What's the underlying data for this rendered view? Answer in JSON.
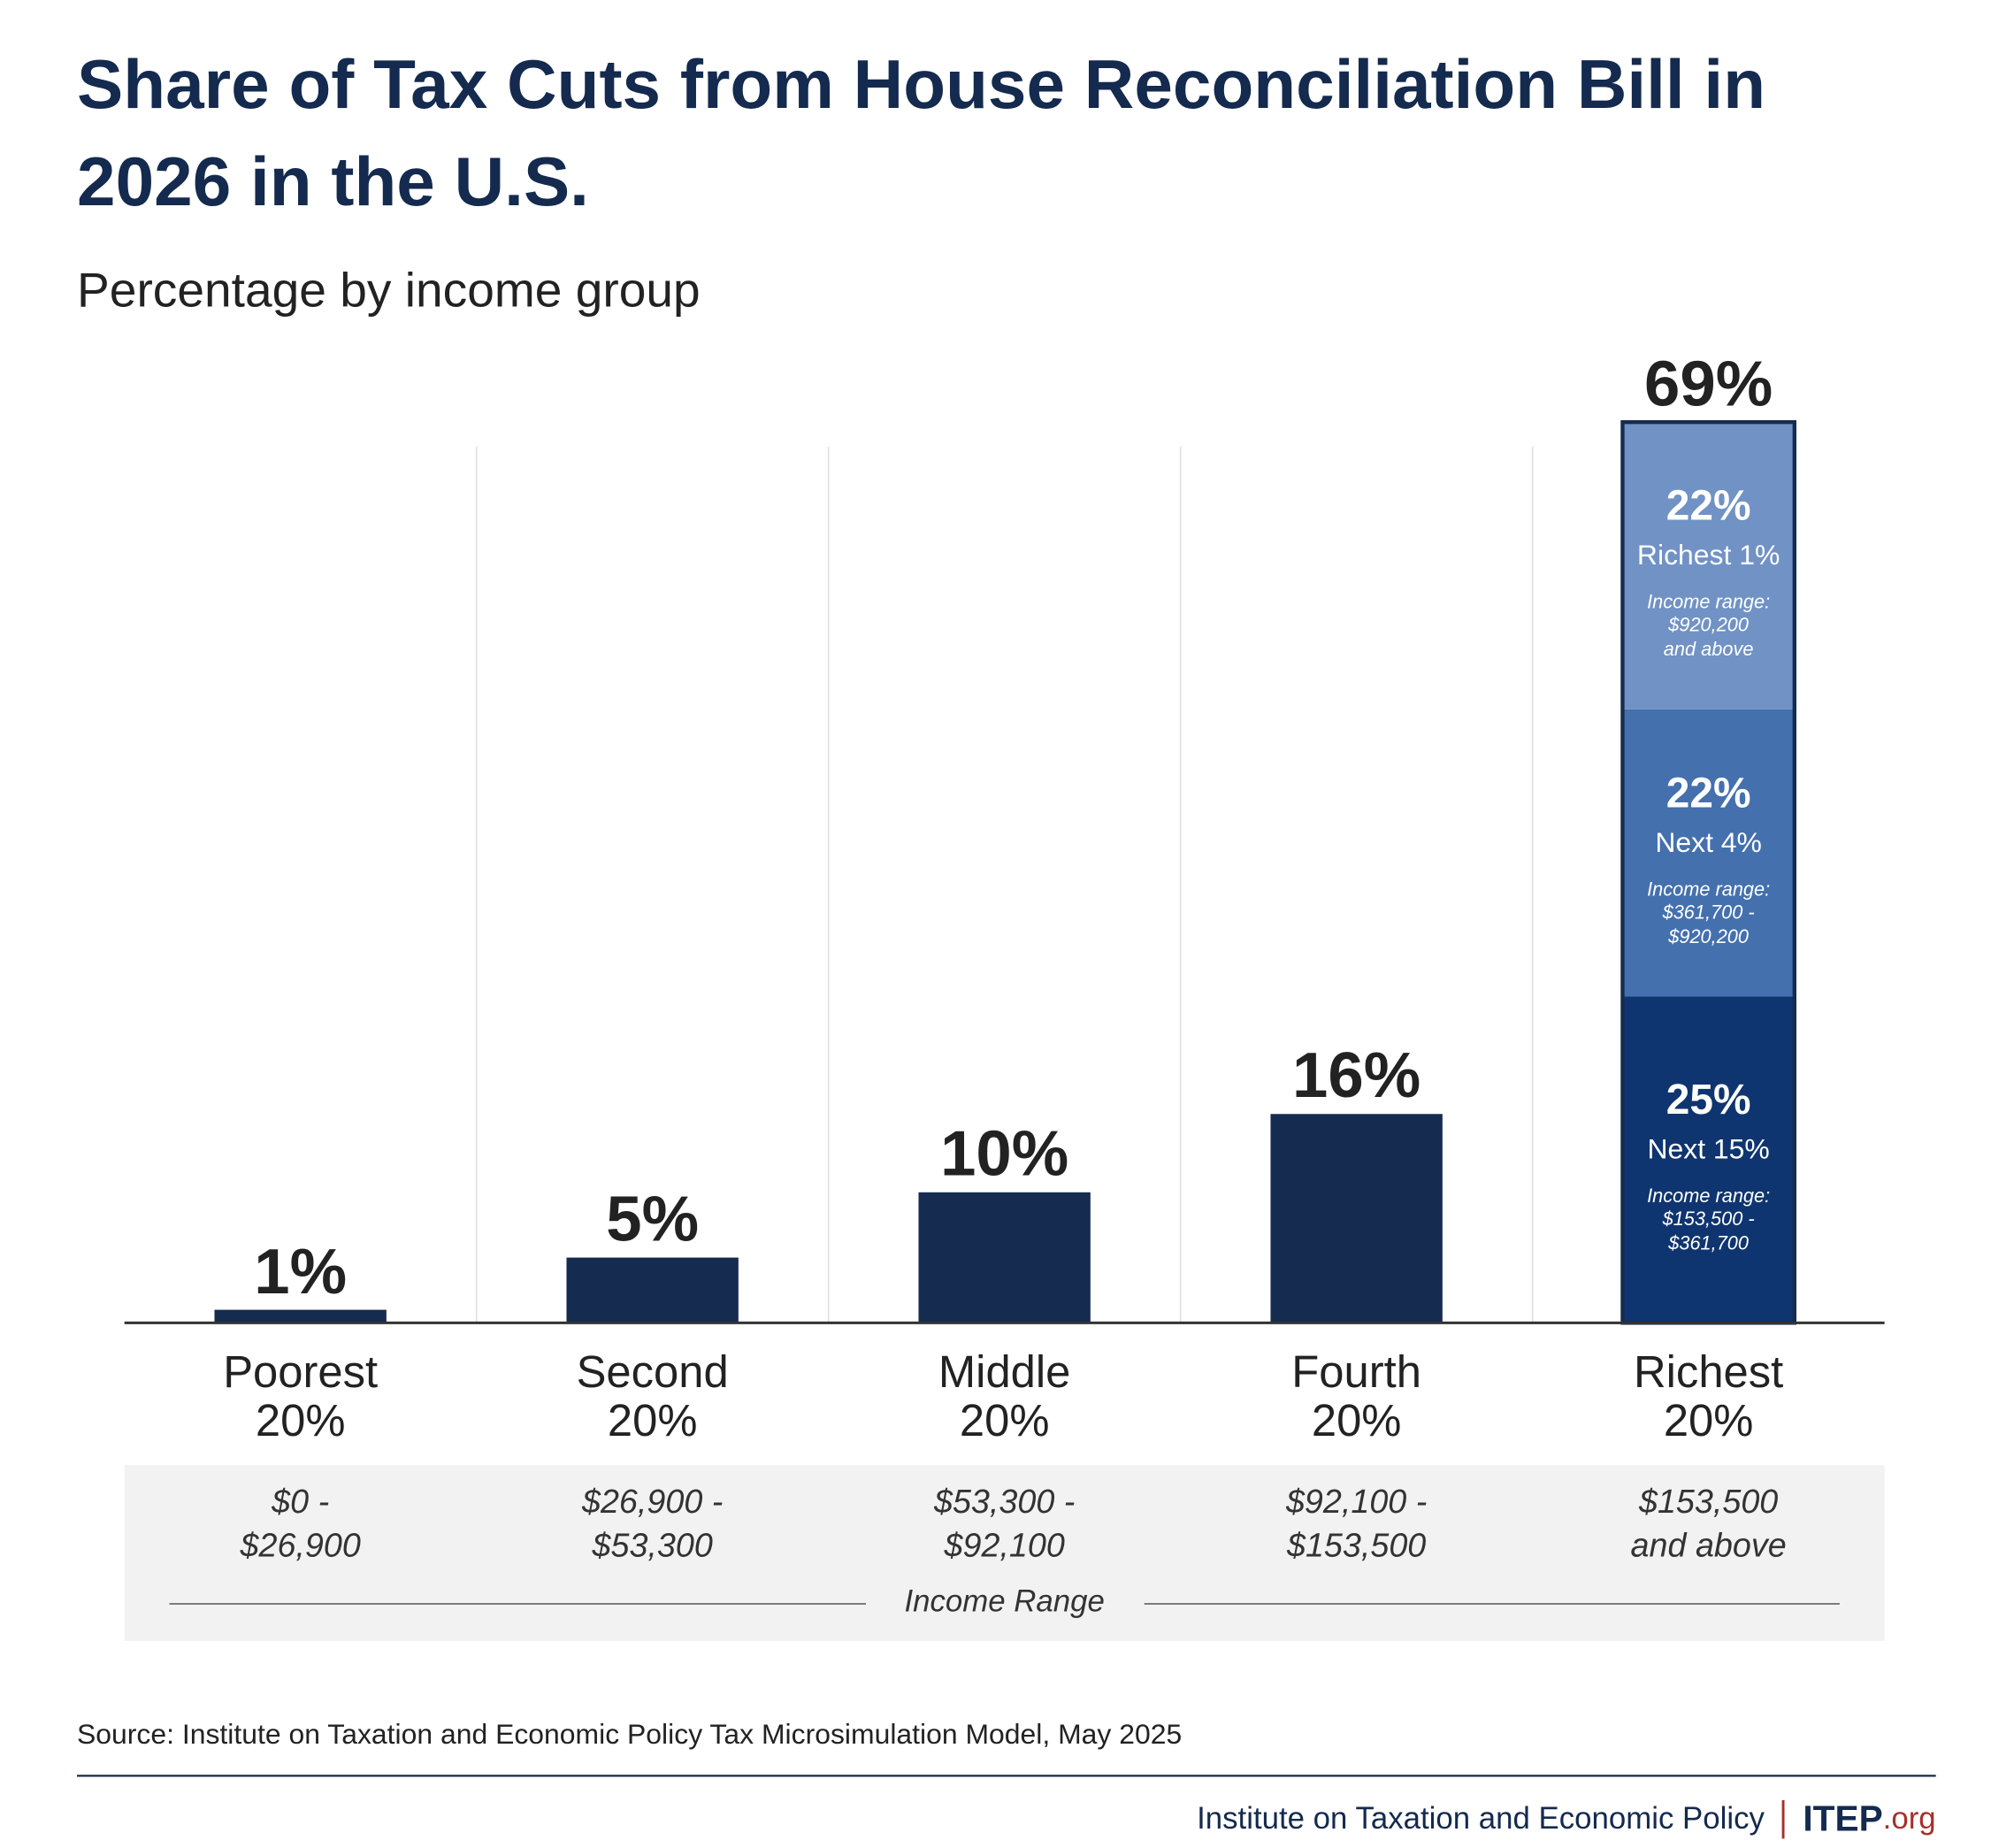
{
  "chart_data": {
    "type": "bar",
    "title": "Share of Tax Cuts from House Reconciliation Bill in 2026 in the U.S.",
    "subtitle": "Percentage by income group",
    "categories": [
      "Poorest\n20%",
      "Second\n20%",
      "Middle\n20%",
      "Fourth\n20%",
      "Richest\n20%"
    ],
    "values": [
      1,
      5,
      10,
      16,
      69
    ],
    "value_labels": [
      "1%",
      "5%",
      "10%",
      "16%",
      "69%"
    ],
    "color": "#152b50",
    "income_ranges": [
      "$0 -\n$26,900",
      "$26,900 -\n$53,300",
      "$53,300 -\n$92,100",
      "$92,100 -\n$153,500",
      "$153,500\nand above"
    ],
    "income_range_label": "Income Range",
    "segments": {
      "category_index": 4,
      "series": [
        {
          "name": "Next 15%",
          "value": 25,
          "value_label": "25%",
          "range_label": "Income range:",
          "range": "$153,500 -\n$361,700",
          "color": "#0f3570"
        },
        {
          "name": "Next 4%",
          "value": 22,
          "value_label": "22%",
          "range_label": "Income range:",
          "range": "$361,700 -\n$920,200",
          "color": "#4470ae"
        },
        {
          "name": "Richest 1%",
          "value": 22,
          "value_label": "22%",
          "range_label": "Income range:",
          "range": "$920,200\nand above",
          "color": "#7192c4"
        }
      ]
    },
    "source": "Source: Institute on Taxation and Economic Policy Tax Microsimulation Model, May 2025",
    "footer": {
      "org": "Institute on Taxation and Economic Policy",
      "logo": "ITEP",
      "logo_suffix": ".org"
    }
  }
}
